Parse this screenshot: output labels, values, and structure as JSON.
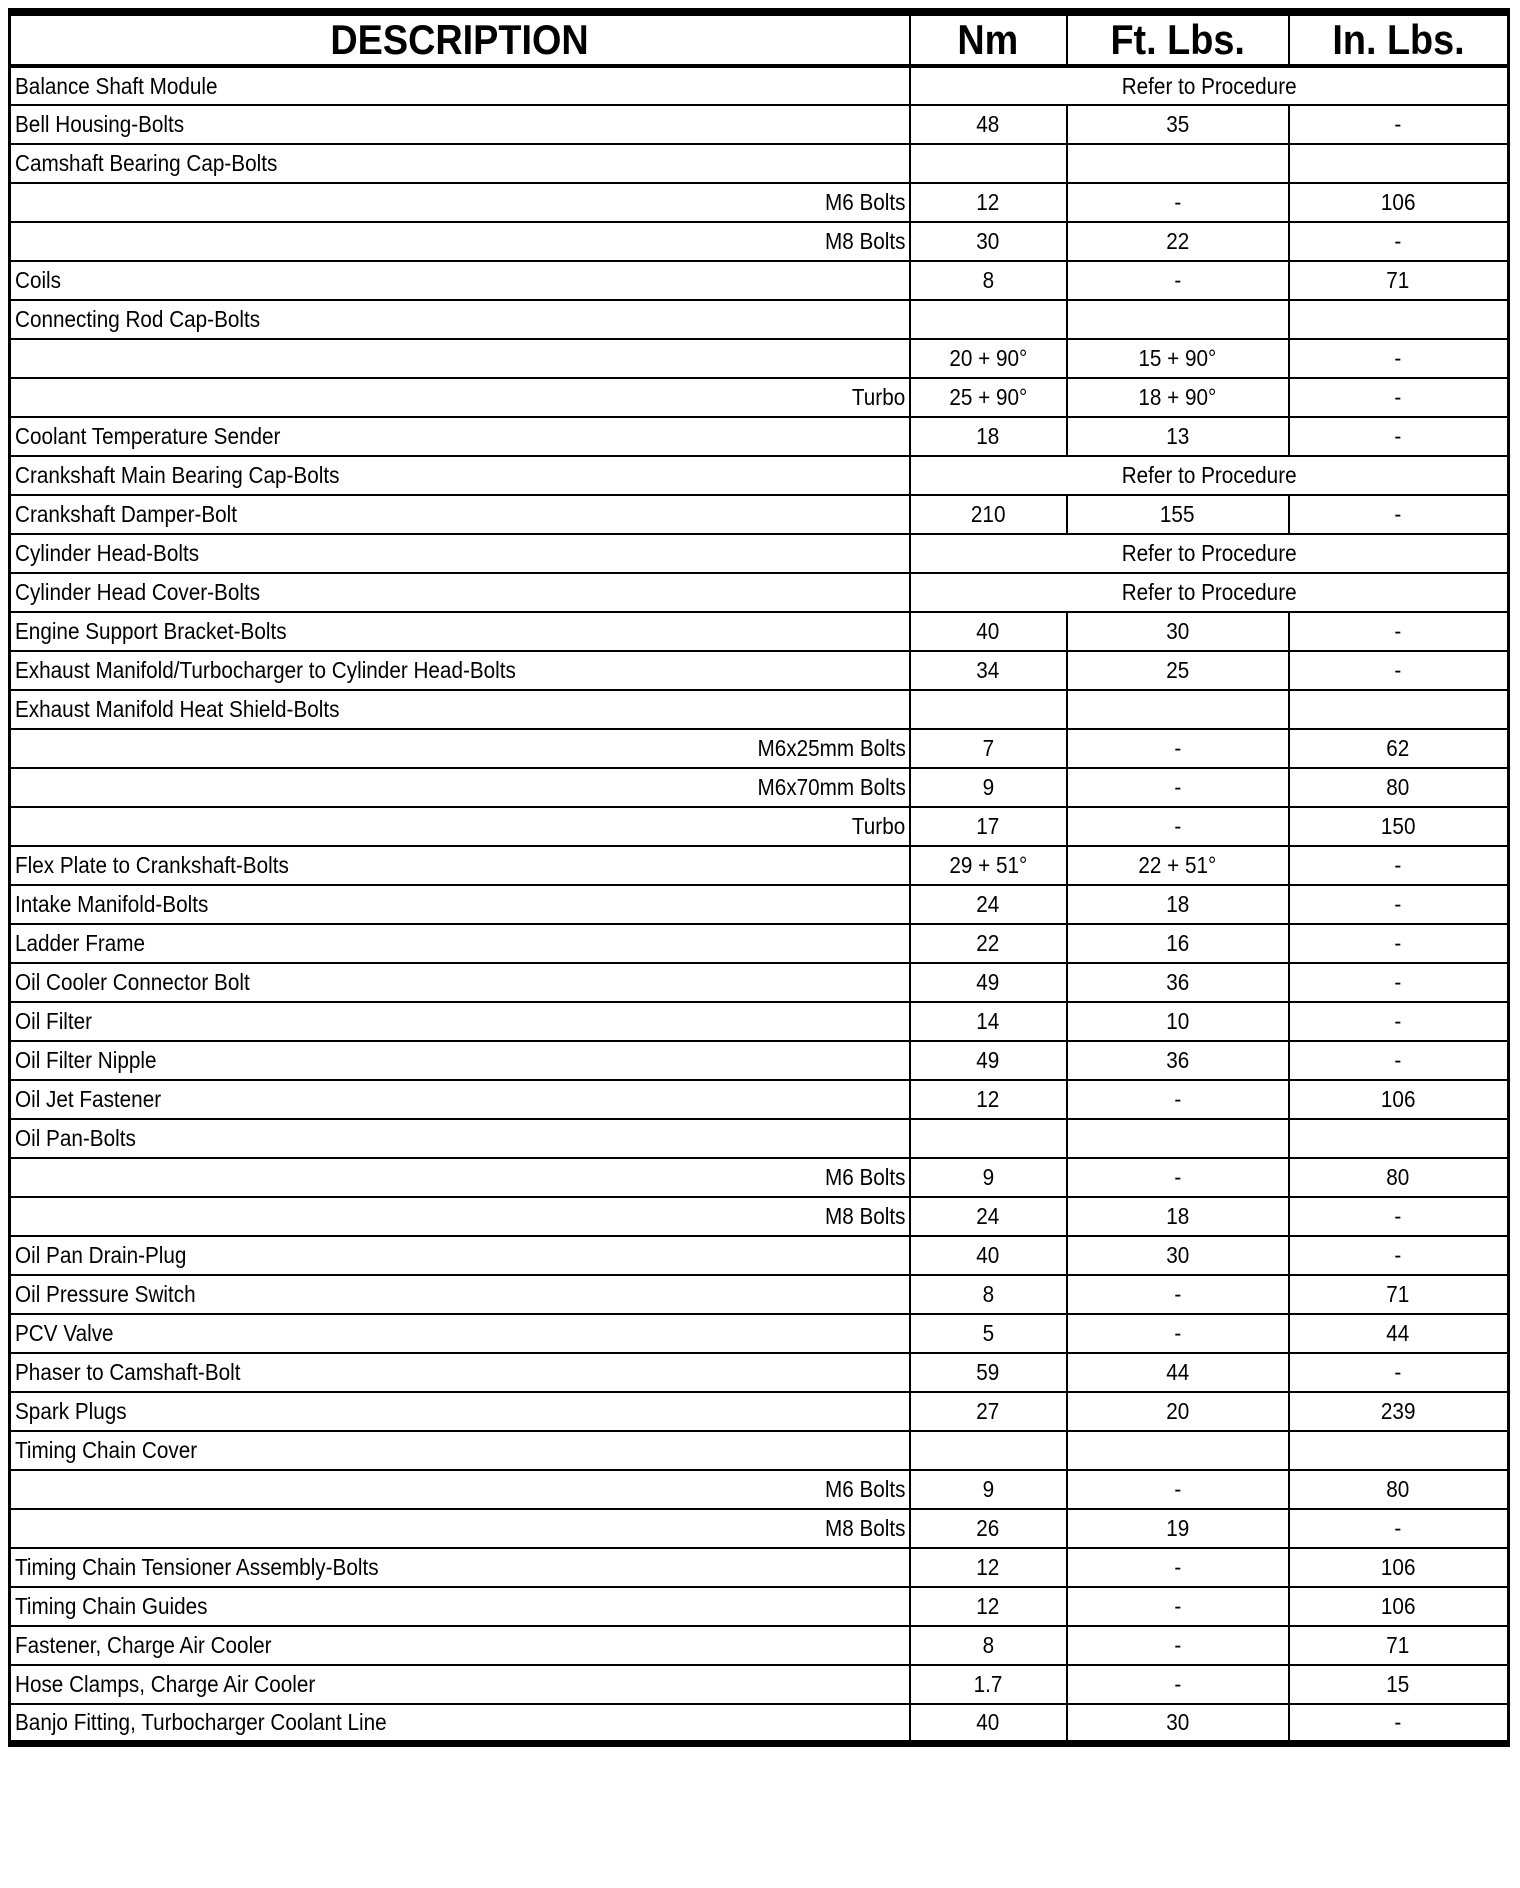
{
  "table": {
    "columns": [
      "DESCRIPTION",
      "Nm",
      "Ft. Lbs.",
      "In. Lbs."
    ],
    "procedure_text": "Refer to Procedure",
    "rows": [
      {
        "desc": "Balance Shaft Module",
        "type": "procedure"
      },
      {
        "desc": "Bell Housing-Bolts",
        "nm": "48",
        "ft": "35",
        "in": "-"
      },
      {
        "desc": "Camshaft Bearing Cap-Bolts",
        "type": "group"
      },
      {
        "desc": "M6 Bolts",
        "align": "right",
        "nm": "12",
        "ft": "-",
        "in": "106"
      },
      {
        "desc": "M8 Bolts",
        "align": "right",
        "nm": "30",
        "ft": "22",
        "in": "-"
      },
      {
        "desc": "Coils",
        "nm": "8",
        "ft": "-",
        "in": "71"
      },
      {
        "desc": "Connecting Rod Cap-Bolts",
        "type": "group"
      },
      {
        "desc": "",
        "align": "right",
        "nm": "20 + 90°",
        "ft": "15 + 90°",
        "in": "-"
      },
      {
        "desc": "Turbo",
        "align": "right",
        "nm": "25 + 90°",
        "ft": "18 + 90°",
        "in": "-"
      },
      {
        "desc": "Coolant Temperature Sender",
        "nm": "18",
        "ft": "13",
        "in": "-"
      },
      {
        "desc": "Crankshaft Main Bearing Cap-Bolts",
        "type": "procedure"
      },
      {
        "desc": "Crankshaft Damper-Bolt",
        "nm": "210",
        "ft": "155",
        "in": "-"
      },
      {
        "desc": "Cylinder Head-Bolts",
        "type": "procedure"
      },
      {
        "desc": "Cylinder Head Cover-Bolts",
        "type": "procedure"
      },
      {
        "desc": "Engine Support Bracket-Bolts",
        "nm": "40",
        "ft": "30",
        "in": "-"
      },
      {
        "desc": "Exhaust Manifold/Turbocharger to Cylinder Head-Bolts",
        "nm": "34",
        "ft": "25",
        "in": "-"
      },
      {
        "desc": "Exhaust Manifold Heat Shield-Bolts",
        "type": "group"
      },
      {
        "desc": "M6x25mm Bolts",
        "align": "right",
        "nm": "7",
        "ft": "-",
        "in": "62"
      },
      {
        "desc": "M6x70mm Bolts",
        "align": "right",
        "nm": "9",
        "ft": "-",
        "in": "80"
      },
      {
        "desc": "Turbo",
        "align": "right",
        "nm": "17",
        "ft": "-",
        "in": "150"
      },
      {
        "desc": "Flex Plate to Crankshaft-Bolts",
        "nm": "29 + 51°",
        "ft": "22 + 51°",
        "in": "-"
      },
      {
        "desc": "Intake Manifold-Bolts",
        "nm": "24",
        "ft": "18",
        "in": "-"
      },
      {
        "desc": "Ladder Frame",
        "nm": "22",
        "ft": "16",
        "in": "-"
      },
      {
        "desc": "Oil Cooler Connector Bolt",
        "nm": "49",
        "ft": "36",
        "in": "-"
      },
      {
        "desc": "Oil Filter",
        "nm": "14",
        "ft": "10",
        "in": "-"
      },
      {
        "desc": "Oil Filter Nipple",
        "nm": "49",
        "ft": "36",
        "in": "-"
      },
      {
        "desc": "Oil Jet Fastener",
        "nm": "12",
        "ft": "-",
        "in": "106"
      },
      {
        "desc": "Oil Pan-Bolts",
        "type": "group"
      },
      {
        "desc": "M6 Bolts",
        "align": "right",
        "nm": "9",
        "ft": "-",
        "in": "80"
      },
      {
        "desc": "M8 Bolts",
        "align": "right",
        "nm": "24",
        "ft": "18",
        "in": "-"
      },
      {
        "desc": "Oil Pan Drain-Plug",
        "nm": "40",
        "ft": "30",
        "in": "-"
      },
      {
        "desc": "Oil Pressure Switch",
        "nm": "8",
        "ft": "-",
        "in": "71"
      },
      {
        "desc": "PCV Valve",
        "nm": "5",
        "ft": "-",
        "in": "44"
      },
      {
        "desc": "Phaser to Camshaft-Bolt",
        "nm": "59",
        "ft": "44",
        "in": "-"
      },
      {
        "desc": "Spark Plugs",
        "nm": "27",
        "ft": "20",
        "in": "239"
      },
      {
        "desc": "Timing Chain Cover",
        "type": "group"
      },
      {
        "desc": "M6 Bolts",
        "align": "right",
        "nm": "9",
        "ft": "-",
        "in": "80"
      },
      {
        "desc": "M8 Bolts",
        "align": "right",
        "nm": "26",
        "ft": "19",
        "in": "-"
      },
      {
        "desc": "Timing Chain Tensioner Assembly-Bolts",
        "nm": "12",
        "ft": "-",
        "in": "106"
      },
      {
        "desc": "Timing Chain Guides",
        "nm": "12",
        "ft": "-",
        "in": "106"
      },
      {
        "desc": "Fastener, Charge Air Cooler",
        "nm": "8",
        "ft": "-",
        "in": "71"
      },
      {
        "desc": "Hose Clamps, Charge Air Cooler",
        "nm": "1.7",
        "ft": "-",
        "in": "15"
      },
      {
        "desc": "Banjo Fitting, Turbocharger Coolant Line",
        "nm": "40",
        "ft": "30",
        "in": "-"
      }
    ]
  }
}
